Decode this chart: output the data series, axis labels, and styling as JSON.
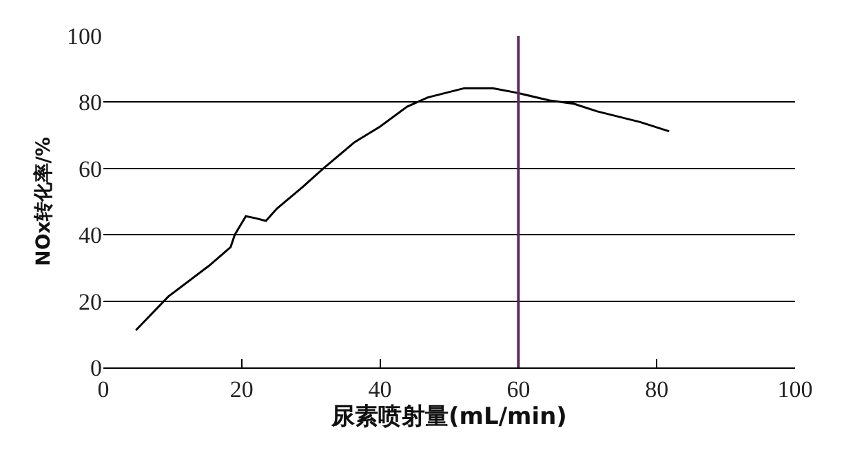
{
  "chart_data": {
    "type": "line",
    "xlabel": "尿素喷射量(mL/min)",
    "ylabel": "NOx转化率/%",
    "x": [
      4.7,
      9.4,
      15.3,
      18.4,
      19,
      20.6,
      22,
      23.5,
      25.1,
      28.8,
      31.8,
      36.3,
      40,
      43.9,
      46.9,
      52.2,
      53.7,
      56.3,
      59.8,
      64.5,
      68,
      71.4,
      77.6,
      81.8
    ],
    "series": [
      {
        "color": "#000000",
        "values": [
          11.2,
          21.4,
          30.7,
          36.3,
          40,
          45.6,
          45,
          44.2,
          47.9,
          54.4,
          60,
          67.9,
          72.6,
          78.6,
          81.4,
          84.2,
          84.2,
          84.2,
          82.8,
          80.5,
          79.5,
          77.2,
          74,
          71.2
        ]
      }
    ],
    "xlim": [
      0,
      100
    ],
    "xticks": [
      0,
      20,
      40,
      60,
      80,
      100
    ],
    "ylim": [
      0,
      100
    ],
    "yticks": [
      0,
      20,
      40,
      60,
      80,
      100
    ],
    "grid": "y",
    "marker": "none",
    "line_style": "solid",
    "ref_lines": [
      {
        "axis": "x",
        "value": 60,
        "color": "#5a2a5a",
        "line_style": "solid"
      }
    ]
  }
}
